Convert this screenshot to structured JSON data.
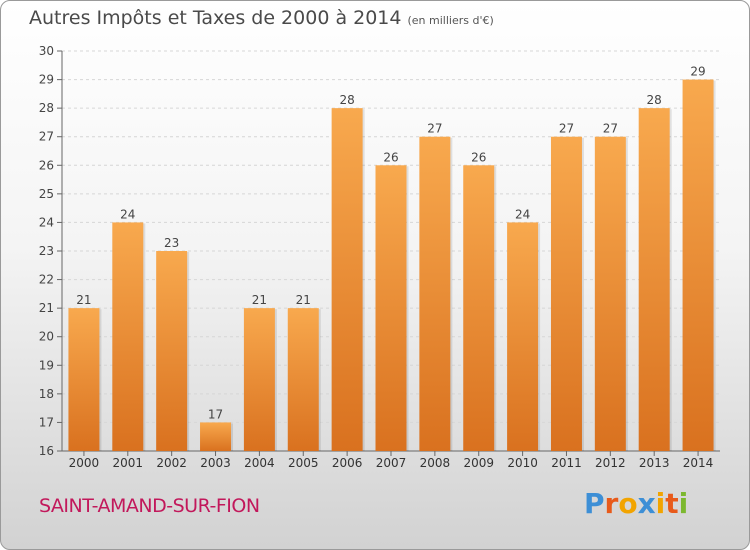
{
  "chart_data": {
    "type": "bar",
    "title": "Autres Impôts et Taxes de 2000 à 2014",
    "subtitle": "(en milliers d'€)",
    "categories": [
      "2000",
      "2001",
      "2002",
      "2003",
      "2004",
      "2005",
      "2006",
      "2007",
      "2008",
      "2009",
      "2010",
      "2011",
      "2012",
      "2013",
      "2014"
    ],
    "values": [
      21,
      24,
      23,
      17,
      21,
      21,
      28,
      26,
      27,
      26,
      24,
      27,
      27,
      28,
      29
    ],
    "ylim": [
      16,
      30
    ],
    "yticks": [
      16,
      17,
      18,
      19,
      20,
      21,
      22,
      23,
      24,
      25,
      26,
      27,
      28,
      29,
      30
    ],
    "grid": true,
    "bar_color_top": "#f8a94e",
    "bar_color_bottom": "#d9711f"
  },
  "location": "SAINT-AMAND-SUR-FION",
  "brand": "Proxiti"
}
